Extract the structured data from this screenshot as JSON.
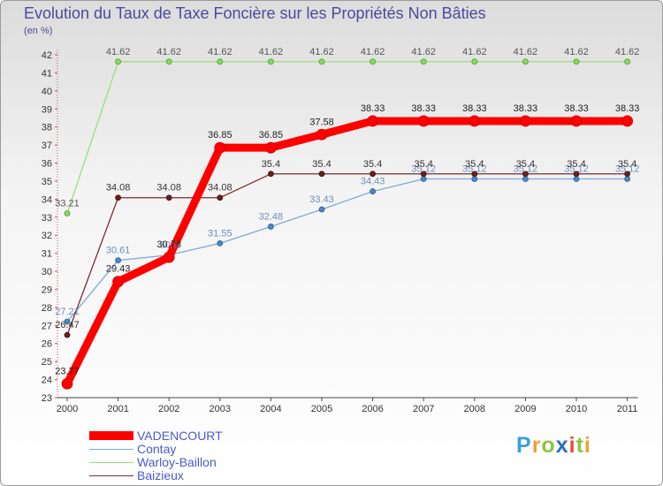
{
  "chart_data": {
    "type": "line",
    "title": "Evolution du Taux de Taxe Foncière sur les Propriétés Non Bâties",
    "ylabel": "(en %)",
    "xlabel": "",
    "ylim": [
      23,
      42
    ],
    "yticks": [
      23,
      24,
      25,
      26,
      27,
      28,
      29,
      30,
      31,
      32,
      33,
      34,
      35,
      36,
      37,
      38,
      39,
      40,
      41,
      42
    ],
    "categories": [
      "2000",
      "2001",
      "2002",
      "2003",
      "2004",
      "2005",
      "2006",
      "2007",
      "2008",
      "2009",
      "2010",
      "2011"
    ],
    "series": [
      {
        "name": "VADENCOURT",
        "color": "#ff0000",
        "values": [
          23.77,
          29.43,
          30.78,
          36.85,
          36.85,
          37.58,
          38.33,
          38.33,
          38.33,
          38.33,
          38.33,
          38.33
        ],
        "labels": [
          "23.77",
          "29.43",
          "30.78",
          "36.85",
          "36.85",
          "37.58",
          "38.33",
          "38.33",
          "38.33",
          "38.33",
          "38.33",
          "38.33"
        ]
      },
      {
        "name": "Contay",
        "color": "#7fa9d8",
        "values": [
          27.21,
          30.61,
          30.9,
          31.55,
          32.48,
          33.43,
          34.43,
          35.12,
          35.12,
          35.12,
          35.12,
          35.12
        ],
        "labels": [
          "27.21",
          "30.61",
          "30.9",
          "31.55",
          "32.48",
          "33.43",
          "34.43",
          "35.12",
          "35.12",
          "35.12",
          "35.12",
          "35.12"
        ]
      },
      {
        "name": "Warloy-Baillon",
        "color": "#99e07a",
        "values": [
          33.21,
          41.62,
          41.62,
          41.62,
          41.62,
          41.62,
          41.62,
          41.62,
          41.62,
          41.62,
          41.62,
          41.62
        ],
        "labels": [
          "33.21",
          "41.62",
          "41.62",
          "41.62",
          "41.62",
          "41.62",
          "41.62",
          "41.62",
          "41.62",
          "41.62",
          "41.62",
          "41.62"
        ]
      },
      {
        "name": "Baizieux",
        "color": "#7a2e2e",
        "values": [
          26.47,
          34.08,
          34.08,
          34.08,
          35.4,
          35.4,
          35.4,
          35.4,
          35.4,
          35.4,
          35.4,
          35.4
        ],
        "labels": [
          "26.47",
          "34.08",
          "34.08",
          "34.08",
          "35.4",
          "35.4",
          "35.4",
          "35.4",
          "35.4",
          "35.4",
          "35.4",
          "35.4"
        ]
      }
    ],
    "legend_position": "bottom-left",
    "grid": false
  },
  "logo": {
    "letters": [
      "P",
      "r",
      "o",
      "x",
      "i",
      "t",
      "i"
    ],
    "colors": [
      "#3b9ed9",
      "#f0a030",
      "#8cc63f",
      "#2a6fb8",
      "#e84c3d",
      "#8cc63f",
      "#f0a030"
    ]
  }
}
